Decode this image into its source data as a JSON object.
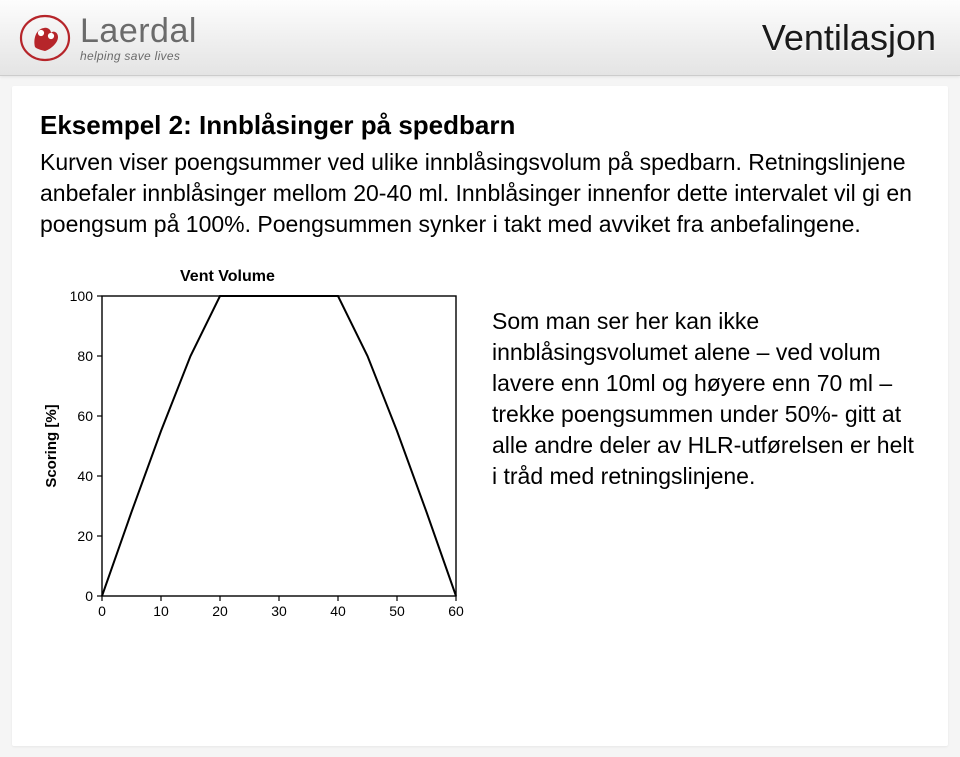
{
  "header": {
    "brand": "Laerdal",
    "tagline": "helping save lives",
    "page_title": "Ventilasjon"
  },
  "content": {
    "example_title": "Eksempel 2: Innblåsinger på spedbarn",
    "para1": "Kurven viser poengsummer ved ulike innblåsingsvolum på spedbarn. Retningslinjene anbefaler innblåsinger mellom 20-40 ml. Innblåsinger innenfor dette intervalet vil gi en poengsum på 100%. Poengsummen synker i takt med avviket fra anbefalingene.",
    "side_para": "Som man ser her kan ikke innblåsingsvolumet alene – ved volum lavere enn 10ml og høyere enn 70 ml – trekke poengsummen under 50%- gitt at alle andre deler av HLR-utførelsen er helt i tråd med retningslinjene."
  },
  "chart": {
    "type": "line",
    "title": "Vent Volume",
    "ylabel": "Scoring [%]",
    "background_color": "#ffffff",
    "border_color": "#000000",
    "line_color": "#000000",
    "line_width": 2,
    "xlim": [
      0,
      60
    ],
    "ylim": [
      0,
      100
    ],
    "xticks": [
      0,
      10,
      20,
      30,
      40,
      50,
      60
    ],
    "yticks": [
      0,
      20,
      40,
      60,
      80,
      100
    ],
    "tick_fontsize": 14,
    "label_fontsize": 15,
    "title_fontsize": 16,
    "series": {
      "x": [
        0,
        5,
        10,
        15,
        20,
        25,
        30,
        35,
        40,
        45,
        50,
        55,
        60
      ],
      "y": [
        0,
        28,
        55,
        80,
        100,
        100,
        100,
        100,
        100,
        80,
        55,
        28,
        0
      ]
    }
  }
}
